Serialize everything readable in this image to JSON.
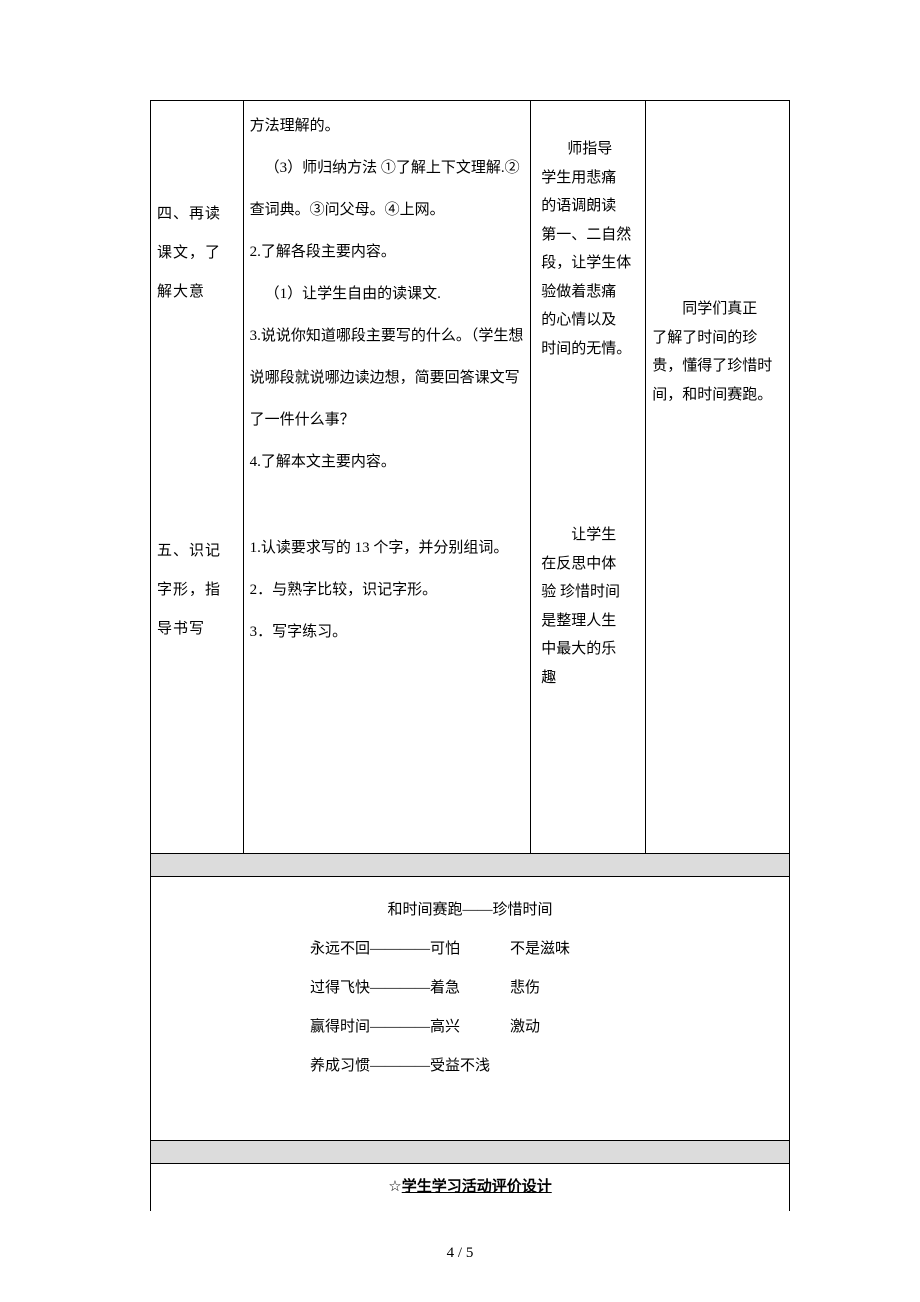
{
  "row1": {
    "col1": "四、再读课文，了解大意",
    "col2_lines": [
      {
        "cls": "",
        "text": "方法理解的。"
      },
      {
        "cls": "p-indent",
        "text": "（3）师归纳方法 ①了解上下文理解.②查词典。③问父母。④上网。"
      },
      {
        "cls": "",
        "text": "2.了解各段主要内容。"
      },
      {
        "cls": "p-indent",
        "text": "（1）让学生自由的读课文."
      },
      {
        "cls": "",
        "text": "3.说说你知道哪段主要写的什么。（学生想说哪段就说哪边读边想，简要回答课文写了一件什么事？"
      },
      {
        "cls": "",
        "text": "4.了解本文主要内容。"
      }
    ],
    "col3_lines": [
      "师指导",
      "学生用悲痛",
      "的语调朗读",
      "第一、二自然",
      "段，让学生体",
      "验做着悲痛",
      "的心情以及",
      "时间的无情。"
    ],
    "col4_lines": [
      "同学们真正",
      "了解了时间的珍",
      "贵，懂得了珍惜时",
      "间，和时间赛跑。"
    ]
  },
  "row2": {
    "col1": "五、识记字形，指导书写",
    "col2_lines": [
      {
        "cls": "",
        "text": "1.认读要求写的 13 个字，并分别组词。"
      },
      {
        "cls": "",
        "text": "2．与熟字比较，识记字形。"
      },
      {
        "cls": "",
        "text": "3．写字练习。"
      }
    ],
    "col3_lines": [
      "让学生",
      "在反思中体",
      "验  珍惜时间",
      "是整理人生",
      "中最大的乐",
      "趣"
    ]
  },
  "board": {
    "title": "和时间赛跑――珍惜时间",
    "rows": [
      {
        "left": "永远不回――――可怕",
        "right": "不是滋味"
      },
      {
        "left": "过得飞快――――着急",
        "right": "悲伤"
      },
      {
        "left": "赢得时间――――高兴",
        "right": "激动"
      },
      {
        "left": "养成习惯――――受益不浅",
        "right": ""
      }
    ]
  },
  "eval": {
    "star": "☆",
    "text": "学生学习活动评价设计"
  },
  "page_number": "4 / 5"
}
